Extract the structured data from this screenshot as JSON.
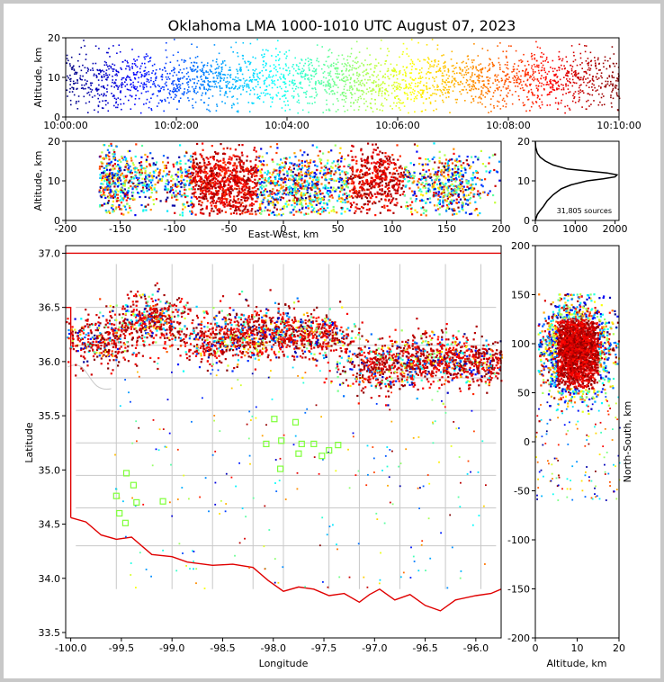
{
  "title": "Oklahoma LMA 1000-1010 UTC August 07, 2023",
  "chart_data": [
    {
      "id": "time_altitude",
      "type": "scatter",
      "ylabel": "Altitude, km",
      "ylim": [
        0,
        20
      ],
      "yticks": [
        "0",
        "10",
        "20"
      ],
      "xticks": [
        "10:00:00",
        "10:02:00",
        "10:04:00",
        "10:06:00",
        "10:08:00",
        "10:10:00"
      ],
      "xlim_seconds": [
        0,
        600
      ],
      "colormap": "jet by time"
    },
    {
      "id": "ew_altitude",
      "type": "scatter",
      "xlabel": "East-West, km",
      "ylabel": "Altitude, km",
      "xlim": [
        -200,
        200
      ],
      "ylim": [
        0,
        20
      ],
      "xticks": [
        -200,
        -150,
        -100,
        -50,
        0,
        50,
        100,
        150,
        200
      ],
      "yticks": [
        0,
        10,
        20
      ],
      "clusters_km": [
        [
          -150,
          10
        ],
        [
          -75,
          10
        ],
        [
          -40,
          9
        ],
        [
          15,
          9
        ],
        [
          80,
          10
        ],
        [
          150,
          9
        ]
      ]
    },
    {
      "id": "altitude_histogram",
      "type": "line",
      "annotation": "31,805 sources",
      "xlim": [
        0,
        2100
      ],
      "ylim": [
        0,
        20
      ],
      "xticks": [
        0,
        1000,
        2000
      ],
      "yticks": [
        0,
        10,
        20
      ],
      "x": [
        0,
        50,
        120,
        200,
        300,
        450,
        650,
        900,
        1300,
        1700,
        2000,
        2050,
        1800,
        1300,
        800,
        450,
        250,
        120,
        50,
        10,
        0
      ],
      "y": [
        0,
        1.5,
        2.5,
        3.5,
        5,
        6.5,
        8,
        9,
        10,
        10.5,
        11,
        11.5,
        12,
        12.5,
        13,
        14,
        15,
        16,
        17,
        18.5,
        20
      ]
    },
    {
      "id": "plan_view",
      "type": "scatter",
      "xlabel": "Longitude",
      "ylabel": "Latitude",
      "xlim": [
        -100.05,
        -95.75
      ],
      "ylim": [
        33.45,
        37.07
      ],
      "xticks": [
        "-100.0",
        "-99.5",
        "-99.0",
        "-98.5",
        "-98.0",
        "-97.5",
        "-97.0",
        "-96.5",
        "-96.0"
      ],
      "yticks": [
        "33.5",
        "34.0",
        "34.5",
        "35.0",
        "35.5",
        "36.0",
        "36.5",
        "37.0"
      ],
      "stations": [
        [
          -99.45,
          34.97
        ],
        [
          -99.38,
          34.86
        ],
        [
          -99.55,
          34.76
        ],
        [
          -99.35,
          34.7
        ],
        [
          -99.52,
          34.6
        ],
        [
          -99.46,
          34.51
        ],
        [
          -99.09,
          34.71
        ],
        [
          -97.99,
          35.47
        ],
        [
          -97.78,
          35.44
        ],
        [
          -97.92,
          35.27
        ],
        [
          -98.07,
          35.24
        ],
        [
          -97.72,
          35.24
        ],
        [
          -97.6,
          35.24
        ],
        [
          -97.36,
          35.23
        ],
        [
          -97.45,
          35.18
        ],
        [
          -97.75,
          35.15
        ],
        [
          -97.52,
          35.13
        ],
        [
          -97.93,
          35.01
        ]
      ],
      "storm_clusters": [
        {
          "lon": -99.75,
          "lat": 36.2
        },
        {
          "lon": -99.2,
          "lat": 36.4
        },
        {
          "lon": -98.55,
          "lat": 36.2
        },
        {
          "lon": -98.1,
          "lat": 36.3
        },
        {
          "lon": -97.65,
          "lat": 36.25
        },
        {
          "lon": -96.95,
          "lat": 35.95
        },
        {
          "lon": -96.45,
          "lat": 36.05
        },
        {
          "lon": -96.0,
          "lat": 36.0
        }
      ]
    },
    {
      "id": "ns_altitude",
      "type": "scatter",
      "xlabel": "Altitude, km",
      "ylabel": "North-South, km",
      "xlim": [
        0,
        20
      ],
      "ylim": [
        -200,
        200
      ],
      "xticks": [
        0,
        10,
        20
      ],
      "yticks": [
        -200,
        -150,
        -100,
        -50,
        0,
        50,
        100,
        150,
        200
      ]
    }
  ]
}
